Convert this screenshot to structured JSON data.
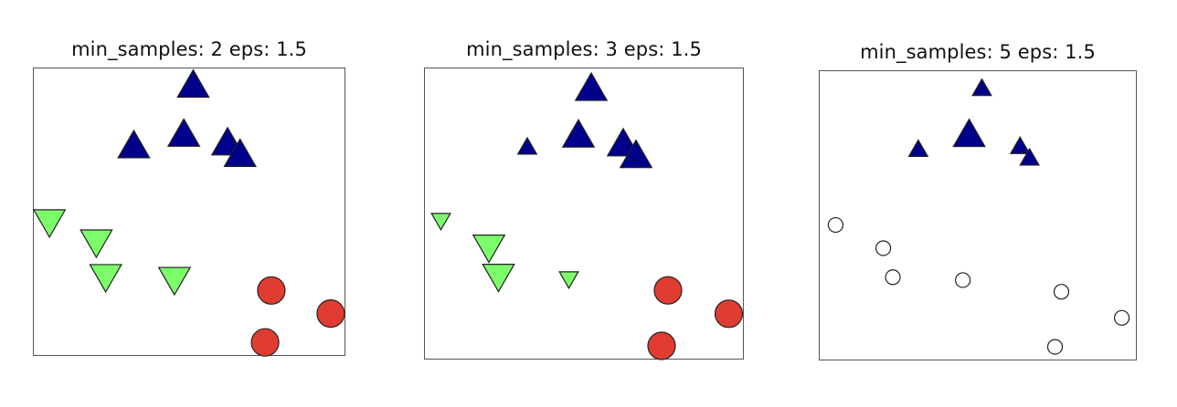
{
  "chart_data": [
    {
      "type": "scatter",
      "title": "min_samples: 2 eps: 1.5",
      "legend": "none",
      "grid": false,
      "xlim": [
        0,
        100
      ],
      "ylim": [
        0,
        100
      ],
      "points": [
        {
          "x": 51,
          "y": 94,
          "cluster": 0,
          "core": true
        },
        {
          "x": 32,
          "y": 73,
          "cluster": 0,
          "core": true
        },
        {
          "x": 48,
          "y": 77,
          "cluster": 0,
          "core": true
        },
        {
          "x": 62,
          "y": 74,
          "cluster": 0,
          "core": true
        },
        {
          "x": 66,
          "y": 70,
          "cluster": 0,
          "core": true
        },
        {
          "x": 5,
          "y": 47,
          "cluster": 1,
          "core": true
        },
        {
          "x": 20,
          "y": 40,
          "cluster": 1,
          "core": true
        },
        {
          "x": 23,
          "y": 28,
          "cluster": 1,
          "core": true
        },
        {
          "x": 45,
          "y": 27,
          "cluster": 1,
          "core": true
        },
        {
          "x": 76,
          "y": 23,
          "cluster": 2,
          "core": true
        },
        {
          "x": 95,
          "y": 15,
          "cluster": 2,
          "core": true
        },
        {
          "x": 74,
          "y": 5,
          "cluster": 2,
          "core": true
        }
      ]
    },
    {
      "type": "scatter",
      "title": "min_samples: 3 eps: 1.5",
      "legend": "none",
      "grid": false,
      "xlim": [
        0,
        100
      ],
      "ylim": [
        0,
        100
      ],
      "points": [
        {
          "x": 52,
          "y": 93,
          "cluster": 0,
          "core": true
        },
        {
          "x": 32,
          "y": 73,
          "cluster": 0,
          "core": false
        },
        {
          "x": 48,
          "y": 77,
          "cluster": 0,
          "core": true
        },
        {
          "x": 62,
          "y": 74,
          "cluster": 0,
          "core": true
        },
        {
          "x": 66,
          "y": 70,
          "cluster": 0,
          "core": true
        },
        {
          "x": 5,
          "y": 48,
          "cluster": 1,
          "core": false
        },
        {
          "x": 20,
          "y": 39,
          "cluster": 1,
          "core": true
        },
        {
          "x": 23,
          "y": 29,
          "cluster": 1,
          "core": true
        },
        {
          "x": 45,
          "y": 28,
          "cluster": 1,
          "core": false
        },
        {
          "x": 76,
          "y": 24,
          "cluster": 2,
          "core": true
        },
        {
          "x": 95,
          "y": 16,
          "cluster": 2,
          "core": true
        },
        {
          "x": 74,
          "y": 5,
          "cluster": 2,
          "core": true
        }
      ]
    },
    {
      "type": "scatter",
      "title": "min_samples: 5 eps: 1.5",
      "legend": "none",
      "grid": false,
      "xlim": [
        0,
        100
      ],
      "ylim": [
        0,
        100
      ],
      "points": [
        {
          "x": 51,
          "y": 94,
          "cluster": 0,
          "core": false
        },
        {
          "x": 47,
          "y": 78,
          "cluster": 0,
          "core": true
        },
        {
          "x": 31,
          "y": 73,
          "cluster": 0,
          "core": false
        },
        {
          "x": 63,
          "y": 74,
          "cluster": 0,
          "core": false
        },
        {
          "x": 66,
          "y": 70,
          "cluster": 0,
          "core": false
        },
        {
          "x": 5,
          "y": 47,
          "cluster": -1,
          "core": false
        },
        {
          "x": 20,
          "y": 39,
          "cluster": -1,
          "core": false
        },
        {
          "x": 23,
          "y": 29,
          "cluster": -1,
          "core": false
        },
        {
          "x": 45,
          "y": 28,
          "cluster": -1,
          "core": false
        },
        {
          "x": 76,
          "y": 24,
          "cluster": -1,
          "core": false
        },
        {
          "x": 95,
          "y": 15,
          "cluster": -1,
          "core": false
        },
        {
          "x": 74,
          "y": 5,
          "cluster": -1,
          "core": false
        }
      ]
    }
  ],
  "styles": {
    "cluster_0_color": "#00008B",
    "cluster_1_color": "#7CFC6A",
    "cluster_2_color": "#E03C31",
    "noise_color": "#FFFFFF",
    "marker_edge_color": "#222222",
    "cluster_0_marker": "triangle-up",
    "cluster_1_marker": "triangle-down",
    "cluster_2_marker": "circle",
    "noise_marker": "circle"
  }
}
